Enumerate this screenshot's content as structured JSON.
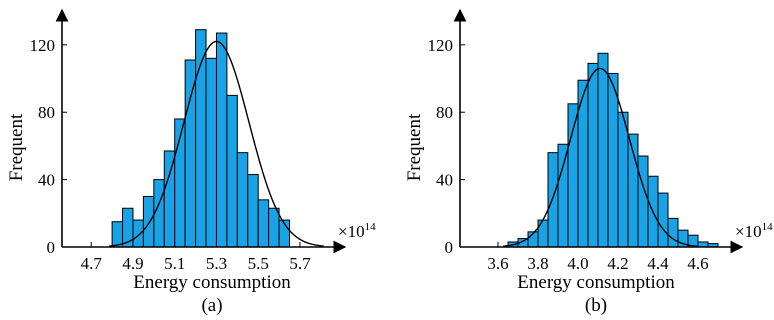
{
  "chart_data": [
    {
      "type": "bar",
      "caption": "(a)",
      "xlabel": "Energy consumption",
      "ylabel": "Frequent",
      "x_exponent_base": "×10",
      "x_exponent_power": "14",
      "xlim": [
        4.56,
        5.82
      ],
      "ylim": [
        0,
        130
      ],
      "x_ticks": [
        "4.7",
        "4.9",
        "5.1",
        "5.3",
        "5.5",
        "5.7"
      ],
      "y_ticks": [
        "0",
        "40",
        "80",
        "120"
      ],
      "bin_start": 4.8,
      "bin_width": 0.05,
      "values": [
        15,
        23,
        16,
        30,
        40,
        57,
        76,
        111,
        129,
        112,
        127,
        90,
        56,
        43,
        28,
        23,
        16
      ],
      "fit_curve": {
        "mean": 5.3,
        "std": 0.156,
        "peak": 122
      },
      "bar_color": "#19a3e6"
    },
    {
      "type": "bar",
      "caption": "(b)",
      "xlabel": "Energy consumption",
      "ylabel": "Frequent",
      "x_exponent_base": "×10",
      "x_exponent_power": "14",
      "xlim": [
        3.41,
        4.72
      ],
      "ylim": [
        0,
        130
      ],
      "x_ticks": [
        "3.6",
        "3.8",
        "4.0",
        "4.2",
        "4.4",
        "4.6"
      ],
      "y_ticks": [
        "0",
        "40",
        "80",
        "120"
      ],
      "bin_start": 3.65,
      "bin_width": 0.05,
      "values": [
        3,
        5,
        9,
        16,
        56,
        61,
        85,
        99,
        109,
        115,
        103,
        80,
        67,
        54,
        42,
        32,
        17,
        10,
        7,
        3,
        2
      ],
      "fit_curve": {
        "mean": 4.11,
        "std": 0.147,
        "peak": 106
      },
      "bar_color": "#19a3e6"
    }
  ]
}
